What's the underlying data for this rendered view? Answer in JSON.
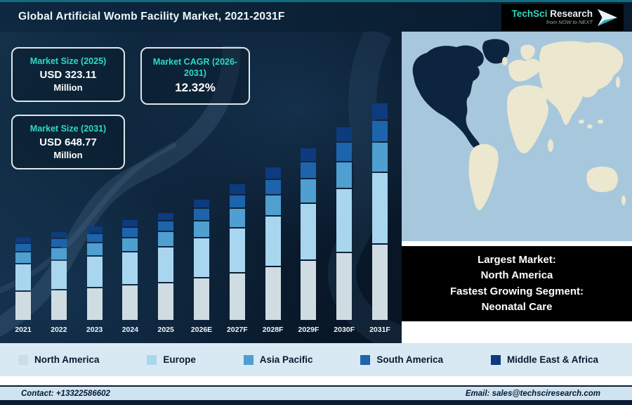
{
  "header": {
    "title": "Global Artificial Womb Facility Market, 2021-2031F",
    "logo": {
      "name_teal": "TechSci",
      "name_rest": " Research",
      "tagline": "from NOW to NEXT"
    }
  },
  "stats": [
    {
      "label": "Market Size (2025)",
      "value": "USD 323.11",
      "unit": "Million"
    },
    {
      "label": "Market CAGR (2026-2031)",
      "value": "12.32%"
    },
    {
      "label": "Market Size (2031)",
      "value": "USD 648.77",
      "unit": "Million"
    }
  ],
  "chart_data": {
    "type": "bar",
    "stacked": true,
    "title": "Global Artificial Womb Facility Market, 2021-2031F",
    "categories": [
      "2021",
      "2022",
      "2023",
      "2024",
      "2025",
      "2026E",
      "2027F",
      "2028F",
      "2029F",
      "2030F",
      "2031F"
    ],
    "series": [
      {
        "name": "North America",
        "color": "#cfdde2",
        "values": [
          87.5,
          93.1,
          99.1,
          105.7,
          113.1,
          127.0,
          142.7,
          160.2,
          180.0,
          202.2,
          227.1
        ]
      },
      {
        "name": "Europe",
        "color": "#a9d6ef",
        "values": [
          82.5,
          87.8,
          93.4,
          99.7,
          106.6,
          119.8,
          134.5,
          151.1,
          169.7,
          190.6,
          214.1
        ]
      },
      {
        "name": "Asia Pacific",
        "color": "#4f9fd1",
        "values": [
          35.0,
          37.2,
          39.6,
          42.3,
          45.2,
          50.8,
          57.1,
          64.1,
          72.0,
          80.9,
          90.8
        ]
      },
      {
        "name": "South America",
        "color": "#1d64ac",
        "values": [
          25.0,
          26.6,
          28.3,
          30.2,
          32.3,
          36.3,
          40.8,
          45.8,
          51.4,
          57.8,
          64.9
        ]
      },
      {
        "name": "Middle East & Africa",
        "color": "#0e3a7e",
        "values": [
          20.0,
          21.3,
          22.6,
          24.2,
          25.8,
          29.0,
          32.6,
          36.6,
          41.1,
          46.2,
          51.9
        ]
      }
    ],
    "ylim": [
      0,
      680
    ],
    "legend_position": "bottom",
    "xlabel": "",
    "ylabel": ""
  },
  "map_panel": {
    "highlighted_region": "North America"
  },
  "info_box": {
    "l1": "Largest Market:",
    "l2": "North America",
    "l3": "Fastest Growing Segment:",
    "l4": "Neonatal Care"
  },
  "footer": {
    "contact": "Contact: +13322586602",
    "email": "Email: sales@techsciresearch.com"
  },
  "colors": {
    "accent_teal": "#2ed9c3",
    "dark_bg_1": "#0e2840",
    "dark_bg_2": "#081a2c",
    "map_ocean": "#a7c7dd",
    "map_land": "#ece7cf",
    "map_highlight": "#0c2440",
    "legend_band_bg": "#d8e9f4",
    "contact_band_bg": "#cfe3f0",
    "footer_strip": "#0a1c33"
  }
}
